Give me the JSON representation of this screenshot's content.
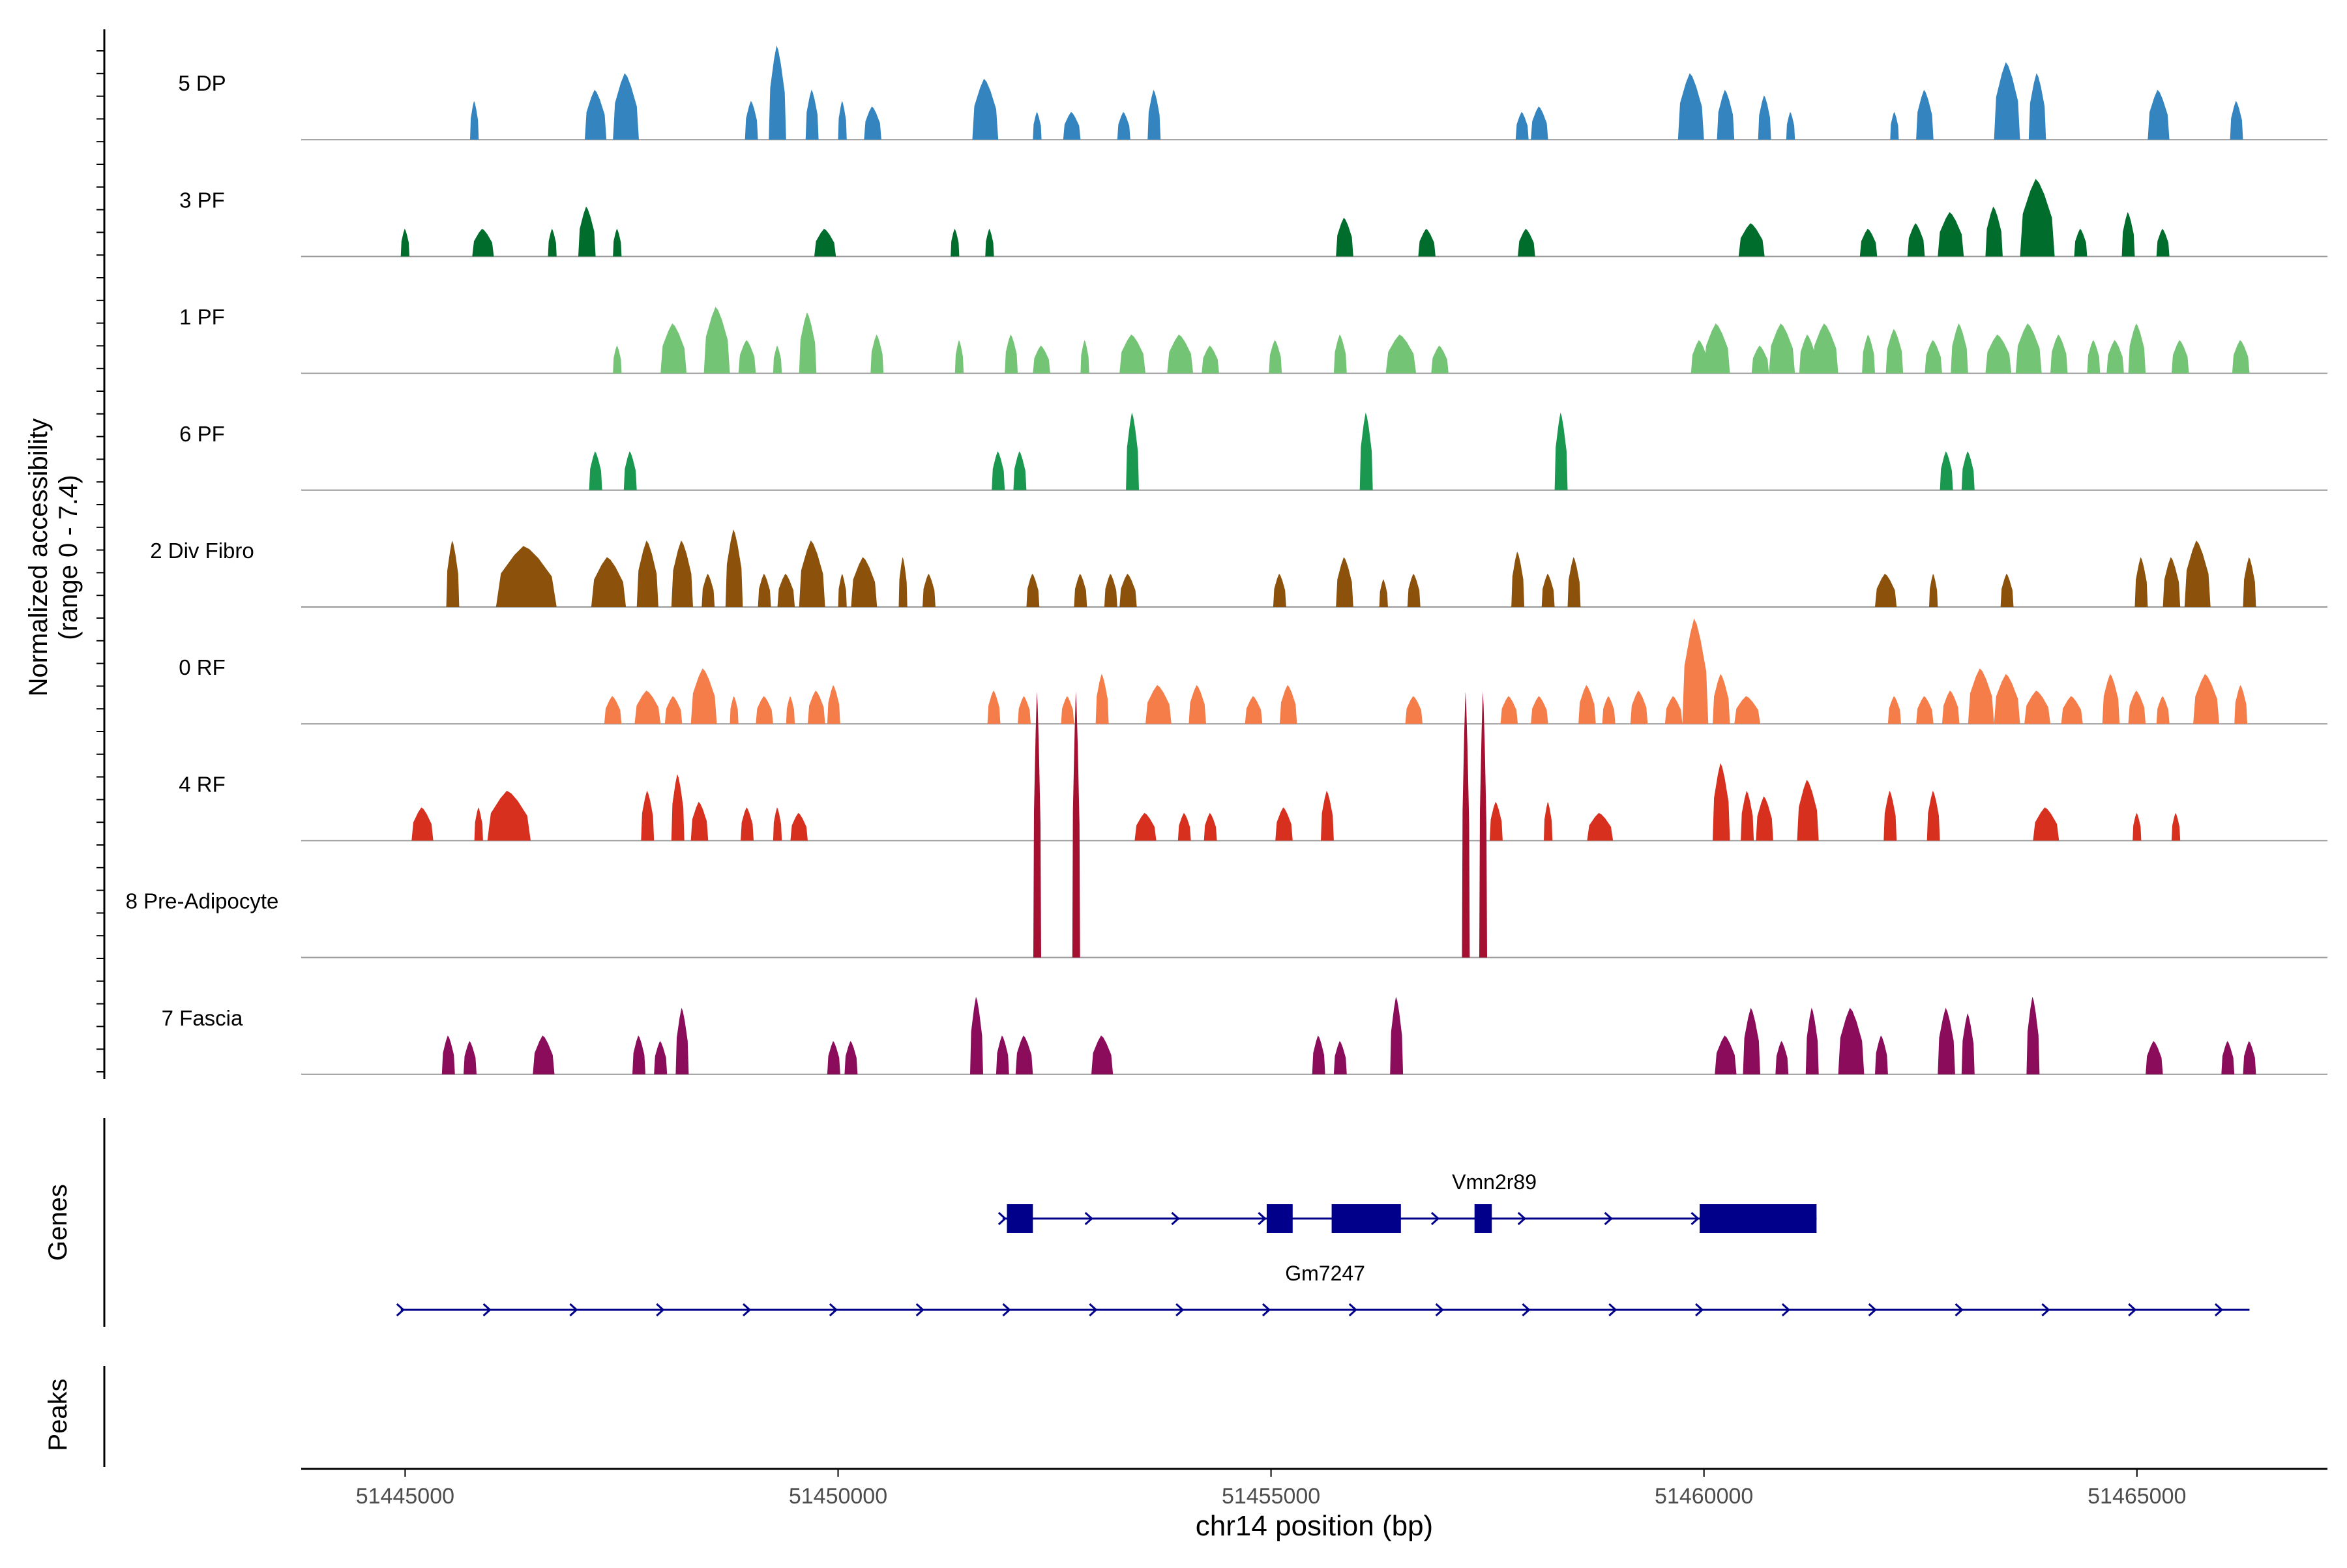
{
  "chart_data": {
    "type": "coverage-track",
    "region": "chr14",
    "xlabel": "chr14 position (bp)",
    "xlim": [
      51443800,
      51467200
    ],
    "xticks": [
      51445000,
      51450000,
      51455000,
      51460000,
      51465000
    ],
    "xtick_labels": [
      "51445000",
      "51450000",
      "51455000",
      "51460000",
      "51465000"
    ],
    "ylabel_line1": "Normalized accessibility",
    "ylabel_line2": "(range 0 - 7.4)",
    "y_range": [
      0,
      7.4
    ],
    "tracks": [
      {
        "name": "5 DP",
        "color": "#3485BF",
        "peaks": [
          [
            51445800,
            100,
            0.35
          ],
          [
            51447200,
            250,
            0.45
          ],
          [
            51447550,
            300,
            0.6
          ],
          [
            51449000,
            150,
            0.35
          ],
          [
            51449300,
            200,
            0.85
          ],
          [
            51449700,
            150,
            0.45
          ],
          [
            51450050,
            100,
            0.35
          ],
          [
            51450400,
            200,
            0.3
          ],
          [
            51451700,
            300,
            0.55
          ],
          [
            51452300,
            100,
            0.25
          ],
          [
            51452700,
            200,
            0.25
          ],
          [
            51453300,
            150,
            0.25
          ],
          [
            51453650,
            150,
            0.45
          ],
          [
            51457900,
            150,
            0.25
          ],
          [
            51458100,
            200,
            0.3
          ],
          [
            51459850,
            300,
            0.6
          ],
          [
            51460250,
            200,
            0.45
          ],
          [
            51460700,
            150,
            0.4
          ],
          [
            51461000,
            100,
            0.25
          ],
          [
            51462200,
            100,
            0.25
          ],
          [
            51462550,
            200,
            0.45
          ],
          [
            51463500,
            300,
            0.7
          ],
          [
            51463850,
            200,
            0.6
          ],
          [
            51465250,
            250,
            0.45
          ],
          [
            51466150,
            150,
            0.35
          ]
        ]
      },
      {
        "name": "3 PF",
        "color": "#006D2C",
        "peaks": [
          [
            51445000,
            100,
            0.25
          ],
          [
            51445900,
            250,
            0.25
          ],
          [
            51446700,
            100,
            0.25
          ],
          [
            51447100,
            200,
            0.45
          ],
          [
            51447450,
            100,
            0.25
          ],
          [
            51449850,
            250,
            0.25
          ],
          [
            51451350,
            100,
            0.25
          ],
          [
            51451750,
            100,
            0.25
          ],
          [
            51455850,
            200,
            0.35
          ],
          [
            51456800,
            200,
            0.25
          ],
          [
            51457950,
            200,
            0.25
          ],
          [
            51460550,
            300,
            0.3
          ],
          [
            51461900,
            200,
            0.25
          ],
          [
            51462450,
            200,
            0.3
          ],
          [
            51462850,
            300,
            0.4
          ],
          [
            51463350,
            200,
            0.45
          ],
          [
            51463850,
            400,
            0.7
          ],
          [
            51464350,
            150,
            0.25
          ],
          [
            51464900,
            150,
            0.4
          ],
          [
            51465300,
            150,
            0.25
          ]
        ]
      },
      {
        "name": "1 PF",
        "color": "#74C476",
        "peaks": [
          [
            51447450,
            100,
            0.25
          ],
          [
            51448100,
            300,
            0.45
          ],
          [
            51448600,
            300,
            0.6
          ],
          [
            51448950,
            200,
            0.3
          ],
          [
            51449300,
            100,
            0.25
          ],
          [
            51449650,
            200,
            0.55
          ],
          [
            51450450,
            150,
            0.35
          ],
          [
            51451400,
            100,
            0.3
          ],
          [
            51452000,
            150,
            0.35
          ],
          [
            51452350,
            200,
            0.25
          ],
          [
            51452850,
            100,
            0.3
          ],
          [
            51453400,
            300,
            0.35
          ],
          [
            51453950,
            300,
            0.35
          ],
          [
            51454300,
            200,
            0.25
          ],
          [
            51455050,
            150,
            0.3
          ],
          [
            51455800,
            150,
            0.35
          ],
          [
            51456500,
            350,
            0.35
          ],
          [
            51456950,
            200,
            0.25
          ],
          [
            51459950,
            200,
            0.3
          ],
          [
            51460150,
            300,
            0.45
          ],
          [
            51460650,
            200,
            0.25
          ],
          [
            51460900,
            300,
            0.45
          ],
          [
            51461200,
            200,
            0.35
          ],
          [
            51461400,
            300,
            0.45
          ],
          [
            51461900,
            150,
            0.35
          ],
          [
            51462200,
            200,
            0.4
          ],
          [
            51462650,
            200,
            0.3
          ],
          [
            51462950,
            200,
            0.45
          ],
          [
            51463400,
            300,
            0.35
          ],
          [
            51463750,
            300,
            0.45
          ],
          [
            51464100,
            200,
            0.35
          ],
          [
            51464500,
            150,
            0.3
          ],
          [
            51464750,
            200,
            0.3
          ],
          [
            51465000,
            200,
            0.45
          ],
          [
            51465500,
            200,
            0.3
          ],
          [
            51466200,
            200,
            0.3
          ]
        ]
      },
      {
        "name": "6 PF",
        "color": "#1A9850",
        "peaks": [
          [
            51447200,
            150,
            0.35
          ],
          [
            51447600,
            150,
            0.35
          ],
          [
            51451850,
            150,
            0.35
          ],
          [
            51452100,
            150,
            0.35
          ],
          [
            51453400,
            150,
            0.7
          ],
          [
            51456100,
            150,
            0.7
          ],
          [
            51458350,
            150,
            0.7
          ],
          [
            51462800,
            150,
            0.35
          ],
          [
            51463050,
            150,
            0.35
          ]
        ]
      },
      {
        "name": "2 Div Fibro",
        "color": "#8C510A",
        "peaks": [
          [
            51445550,
            150,
            0.6
          ],
          [
            51446400,
            700,
            0.55
          ],
          [
            51447350,
            400,
            0.45
          ],
          [
            51447800,
            250,
            0.6
          ],
          [
            51448200,
            250,
            0.6
          ],
          [
            51448500,
            150,
            0.3
          ],
          [
            51448800,
            200,
            0.7
          ],
          [
            51449150,
            150,
            0.3
          ],
          [
            51449400,
            200,
            0.3
          ],
          [
            51449700,
            300,
            0.6
          ],
          [
            51450050,
            100,
            0.3
          ],
          [
            51450300,
            300,
            0.45
          ],
          [
            51450750,
            100,
            0.45
          ],
          [
            51451050,
            150,
            0.3
          ],
          [
            51452250,
            150,
            0.3
          ],
          [
            51452800,
            150,
            0.3
          ],
          [
            51453150,
            150,
            0.3
          ],
          [
            51453350,
            200,
            0.3
          ],
          [
            51455100,
            150,
            0.3
          ],
          [
            51455850,
            200,
            0.45
          ],
          [
            51456300,
            100,
            0.25
          ],
          [
            51456650,
            150,
            0.3
          ],
          [
            51457850,
            150,
            0.5
          ],
          [
            51458200,
            150,
            0.3
          ],
          [
            51458500,
            150,
            0.45
          ],
          [
            51462100,
            250,
            0.3
          ],
          [
            51462650,
            100,
            0.3
          ],
          [
            51463500,
            150,
            0.3
          ],
          [
            51465050,
            150,
            0.45
          ],
          [
            51465400,
            200,
            0.45
          ],
          [
            51465700,
            300,
            0.6
          ],
          [
            51466300,
            150,
            0.45
          ]
        ]
      },
      {
        "name": "0 RF",
        "color": "#F47D4A",
        "peaks": [
          [
            51447400,
            200,
            0.25
          ],
          [
            51447800,
            300,
            0.3
          ],
          [
            51448100,
            200,
            0.25
          ],
          [
            51448450,
            300,
            0.5
          ],
          [
            51448800,
            100,
            0.25
          ],
          [
            51449150,
            200,
            0.25
          ],
          [
            51449450,
            100,
            0.25
          ],
          [
            51449750,
            200,
            0.3
          ],
          [
            51449950,
            150,
            0.35
          ],
          [
            51451800,
            150,
            0.3
          ],
          [
            51452150,
            150,
            0.25
          ],
          [
            51452650,
            150,
            0.25
          ],
          [
            51453050,
            150,
            0.45
          ],
          [
            51453700,
            300,
            0.35
          ],
          [
            51454150,
            200,
            0.35
          ],
          [
            51454800,
            200,
            0.25
          ],
          [
            51455200,
            200,
            0.35
          ],
          [
            51456650,
            200,
            0.25
          ],
          [
            51457750,
            200,
            0.25
          ],
          [
            51458100,
            200,
            0.25
          ],
          [
            51458650,
            200,
            0.35
          ],
          [
            51458900,
            150,
            0.25
          ],
          [
            51459250,
            200,
            0.3
          ],
          [
            51459650,
            200,
            0.25
          ],
          [
            51459900,
            300,
            0.95
          ],
          [
            51460200,
            200,
            0.45
          ],
          [
            51460500,
            300,
            0.25
          ],
          [
            51462200,
            150,
            0.25
          ],
          [
            51462550,
            200,
            0.25
          ],
          [
            51462850,
            200,
            0.3
          ],
          [
            51463200,
            300,
            0.5
          ],
          [
            51463500,
            300,
            0.45
          ],
          [
            51463850,
            300,
            0.3
          ],
          [
            51464250,
            250,
            0.25
          ],
          [
            51464700,
            200,
            0.45
          ],
          [
            51465000,
            200,
            0.3
          ],
          [
            51465300,
            150,
            0.25
          ],
          [
            51465800,
            300,
            0.45
          ],
          [
            51466200,
            150,
            0.35
          ]
        ]
      },
      {
        "name": "4 RF",
        "color": "#D7301F",
        "peaks": [
          [
            51445200,
            250,
            0.3
          ],
          [
            51445850,
            100,
            0.3
          ],
          [
            51446200,
            500,
            0.45
          ],
          [
            51447800,
            150,
            0.45
          ],
          [
            51448150,
            150,
            0.6
          ],
          [
            51448400,
            200,
            0.35
          ],
          [
            51448950,
            150,
            0.3
          ],
          [
            51449300,
            100,
            0.3
          ],
          [
            51449550,
            200,
            0.25
          ],
          [
            51453550,
            250,
            0.25
          ],
          [
            51454000,
            150,
            0.25
          ],
          [
            51454300,
            150,
            0.25
          ],
          [
            51455150,
            200,
            0.3
          ],
          [
            51455650,
            150,
            0.45
          ],
          [
            51457600,
            150,
            0.35
          ],
          [
            51458200,
            100,
            0.35
          ],
          [
            51458800,
            300,
            0.25
          ],
          [
            51460200,
            200,
            0.7
          ],
          [
            51460500,
            150,
            0.45
          ],
          [
            51460700,
            200,
            0.4
          ],
          [
            51461200,
            250,
            0.55
          ],
          [
            51462150,
            150,
            0.45
          ],
          [
            51462650,
            150,
            0.45
          ],
          [
            51463950,
            300,
            0.3
          ],
          [
            51465000,
            100,
            0.25
          ],
          [
            51465450,
            100,
            0.25
          ]
        ]
      },
      {
        "name": "8 Pre-Adipocyte",
        "color": "#A50F30",
        "peaks": [
          [
            51452300,
            90,
            2.4
          ],
          [
            51452750,
            90,
            2.4
          ],
          [
            51457250,
            90,
            2.4
          ],
          [
            51457450,
            90,
            2.4
          ]
        ]
      },
      {
        "name": "7 Fascia",
        "color": "#8A0C5B",
        "peaks": [
          [
            51445500,
            150,
            0.35
          ],
          [
            51445750,
            150,
            0.3
          ],
          [
            51446600,
            250,
            0.35
          ],
          [
            51447700,
            150,
            0.35
          ],
          [
            51447950,
            150,
            0.3
          ],
          [
            51448200,
            150,
            0.6
          ],
          [
            51449950,
            150,
            0.3
          ],
          [
            51450150,
            150,
            0.3
          ],
          [
            51451600,
            150,
            0.7
          ],
          [
            51451900,
            150,
            0.35
          ],
          [
            51452150,
            200,
            0.35
          ],
          [
            51453050,
            250,
            0.35
          ],
          [
            51455550,
            150,
            0.35
          ],
          [
            51455800,
            150,
            0.3
          ],
          [
            51456450,
            150,
            0.7
          ],
          [
            51460250,
            250,
            0.35
          ],
          [
            51460550,
            200,
            0.6
          ],
          [
            51460900,
            150,
            0.3
          ],
          [
            51461250,
            150,
            0.6
          ],
          [
            51461700,
            300,
            0.6
          ],
          [
            51462050,
            150,
            0.35
          ],
          [
            51462800,
            200,
            0.6
          ],
          [
            51463050,
            150,
            0.55
          ],
          [
            51463800,
            150,
            0.7
          ],
          [
            51465200,
            200,
            0.3
          ],
          [
            51466050,
            150,
            0.3
          ],
          [
            51466300,
            150,
            0.3
          ]
        ]
      }
    ],
    "genes_label": "Genes",
    "peaks_label": "Peaks",
    "genes": [
      {
        "name": "Vmn2r89",
        "start": 51451900,
        "end": 51461300,
        "color": "#00008B",
        "exons": [
          [
            51451950,
            51452250
          ],
          [
            51454950,
            51455250
          ],
          [
            51455700,
            51456500
          ],
          [
            51457350,
            51457550
          ],
          [
            51459950,
            51461300
          ]
        ]
      },
      {
        "name": "Gm7247",
        "start": 51444950,
        "end": 51466300,
        "color": "#00008B",
        "exons": []
      }
    ]
  }
}
